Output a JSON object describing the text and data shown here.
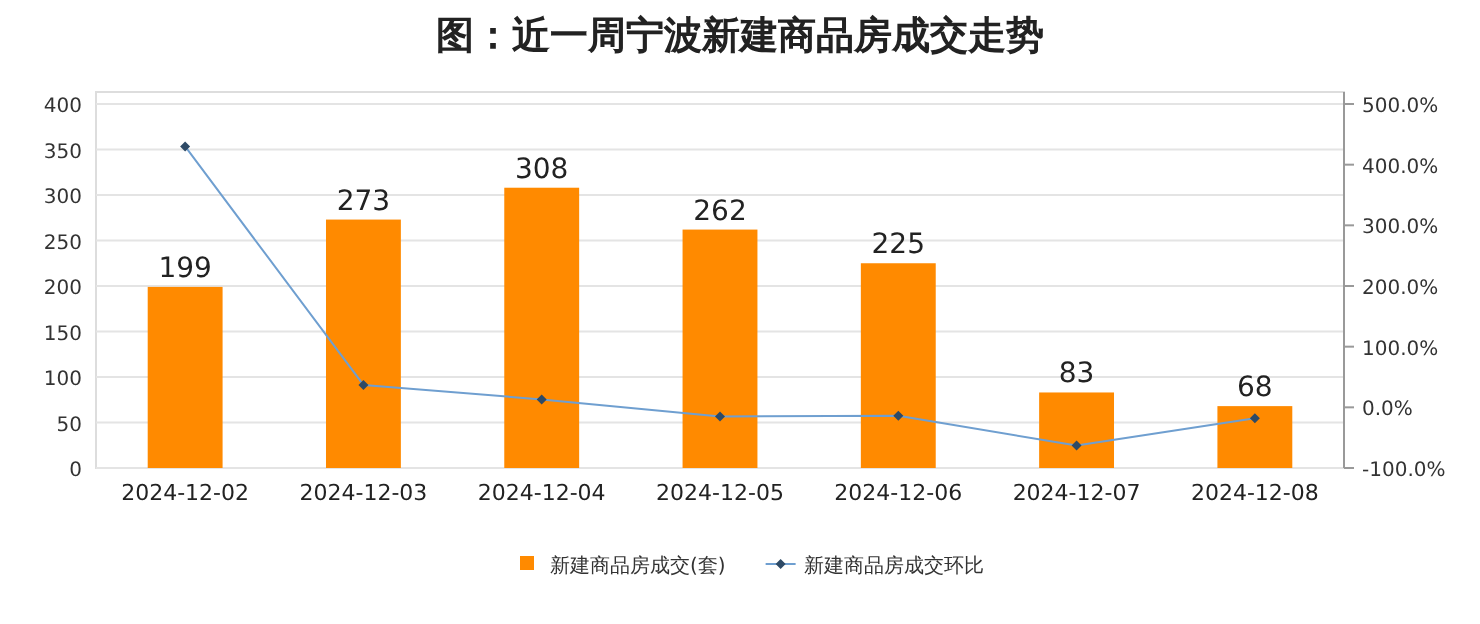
{
  "chart_data": {
    "type": "bar",
    "title": "图：近一周宁波新建商品房成交走势",
    "categories": [
      "2024-12-02",
      "2024-12-03",
      "2024-12-04",
      "2024-12-05",
      "2024-12-06",
      "2024-12-07",
      "2024-12-08"
    ],
    "series": [
      {
        "name": "新建商品房成交(套)",
        "color": "#ff8a00",
        "values": [
          199,
          273,
          308,
          262,
          225,
          83,
          68
        ],
        "value_labels": [
          "199",
          "273",
          "308",
          "262",
          "225",
          "83",
          "68"
        ]
      },
      {
        "name": "新建商品房成交环比",
        "type": "line",
        "axis": "y2",
        "color": "#6f9fd0",
        "marker": "diamond",
        "values": [
          430,
          37,
          13,
          -15,
          -14,
          -63,
          -18
        ]
      }
    ],
    "ylim": [
      0,
      400
    ],
    "yticks": [
      0,
      50,
      100,
      150,
      200,
      250,
      300,
      350,
      400
    ],
    "y2lim": [
      -100,
      500
    ],
    "y2ticks": [
      {
        "value": -100,
        "label": "-100.0%"
      },
      {
        "value": 0,
        "label": "0.0%"
      },
      {
        "value": 100,
        "label": "100.0%"
      },
      {
        "value": 200,
        "label": "200.0%"
      },
      {
        "value": 300,
        "label": "300.0%"
      },
      {
        "value": 400,
        "label": "400.0%"
      },
      {
        "value": 500,
        "label": "500.0%"
      }
    ],
    "grid": "y",
    "legend": "bottom"
  }
}
